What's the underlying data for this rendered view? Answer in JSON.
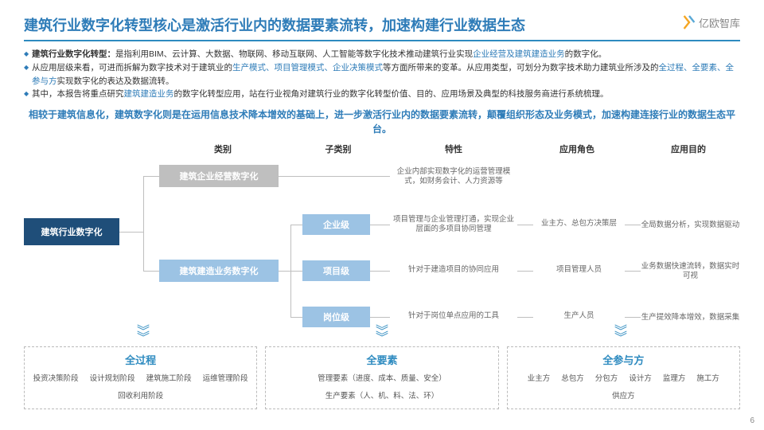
{
  "title": "建筑行业数字化转型核心是激活行业内的数据要素流转，加速构建行业数据生态",
  "logo": "亿欧智库",
  "bullets": [
    {
      "bold": "建筑行业数字化转型：",
      "text": "是指利用BIM、云计算、大数据、物联网、移动互联网、人工智能等数字化技术推动建筑行业实现",
      "link": "企业经营及建筑建造业务",
      "tail": "的数字化。"
    },
    {
      "text": "从应用层级来看，可进而拆解为数字技术对于建筑业的",
      "link": "生产模式、项目管理模式、企业决策模式",
      "tail": "等方面所带来的变革。从应用类型，可划分为数字技术助力建筑业所涉及的",
      "link2": "全过程、全要素、全参与方",
      "tail2": "实现数字化的表达及数据流转。"
    },
    {
      "text": "其中，本报告将重点研究",
      "link": "建筑建造业务",
      "tail": "的数字化转型应用，站在行业视角对建筑行业的数字化转型价值、目的、应用场景及典型的科技服务商进行系统梳理。"
    }
  ],
  "subtitle": "相较于建筑信息化，建筑数字化则是在运用信息技术降本增效的基础上，进一步激活行业内的数据要素流转，颠覆组织形态及业务模式，加速构建连接行业的数据生态平台。",
  "cols": [
    "类别",
    "子类别",
    "特性",
    "应用角色",
    "应用目的"
  ],
  "root": "建筑行业数字化",
  "cat1": "建筑企业经营数字化",
  "cat2": "建筑建造业务数字化",
  "sub": [
    "企业级",
    "项目级",
    "岗位级"
  ],
  "feat": [
    "企业内部实现数字化的运营管理模式，如财务会计、人力资源等",
    "项目管理与企业管理打通，实现企业层面的多项目协同管理",
    "针对于建造项目的协同应用",
    "针对于岗位单点应用的工具"
  ],
  "role": [
    "业主方、总包方决策层",
    "项目管理人员",
    "生产人员"
  ],
  "purpose": [
    "全局数据分析，实现数据驱动",
    "业务数据快速流转，数据实时可视",
    "生产提效降本增效，数据采集"
  ],
  "sections": [
    {
      "title": "全过程",
      "items": [
        "投资决策阶段",
        "设计规划阶段",
        "建筑施工阶段",
        "运维管理阶段",
        "回收利用阶段"
      ]
    },
    {
      "title": "全要素",
      "items": [
        "管理要素（进度、成本、质量、安全）",
        "生产要素（人、机、料、法、环）"
      ]
    },
    {
      "title": "全参与方",
      "items": [
        "业主方",
        "总包方",
        "分包方",
        "设计方",
        "监理方",
        "施工方",
        "供应方"
      ]
    }
  ],
  "page": "6"
}
